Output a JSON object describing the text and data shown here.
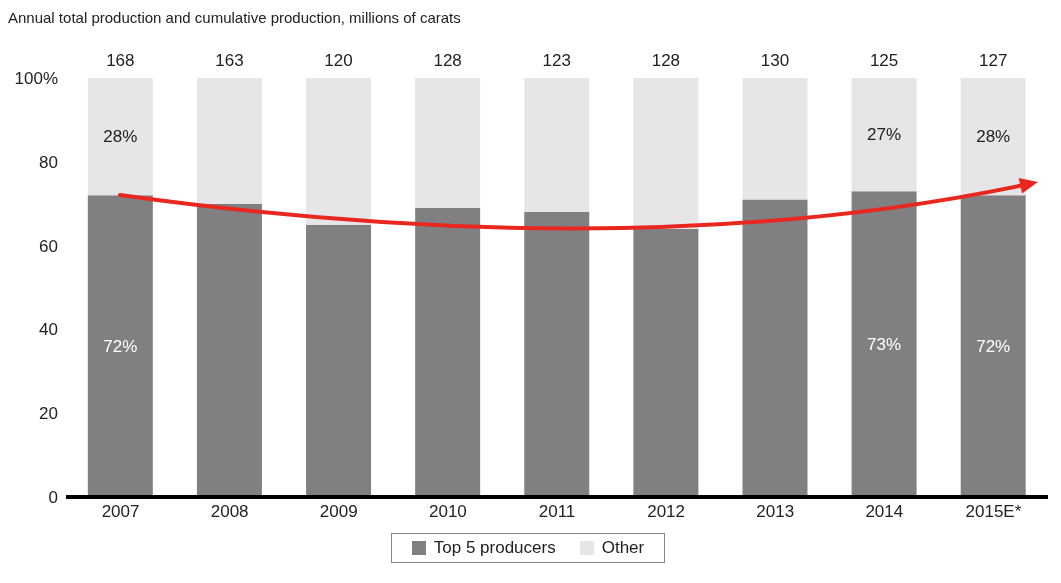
{
  "chart_data": {
    "type": "bar",
    "title": "Annual total production and cumulative production, millions of carats",
    "categories": [
      "2007",
      "2008",
      "2009",
      "2010",
      "2011",
      "2012",
      "2013",
      "2014",
      "2015E*"
    ],
    "stacked": true,
    "series": [
      {
        "name": "Top 5 producers",
        "color": "#808083",
        "values": [
          72,
          70,
          65,
          69,
          68,
          64,
          71,
          73,
          72
        ],
        "value_labels": [
          "72%",
          null,
          null,
          null,
          null,
          null,
          null,
          "73%",
          "72%"
        ]
      },
      {
        "name": "Other",
        "color": "#e6e6e8",
        "values": [
          28,
          30,
          35,
          31,
          32,
          36,
          29,
          27,
          28
        ],
        "value_labels": [
          "28%",
          null,
          null,
          null,
          null,
          null,
          null,
          "27%",
          "28%"
        ]
      }
    ],
    "annotations": [
      "168",
      "163",
      "120",
      "128",
      "123",
      "128",
      "130",
      "125",
      "127"
    ],
    "ylim": [
      0,
      100
    ],
    "yticks": [
      0,
      20,
      40,
      60,
      80,
      {
        "value": 100,
        "label": "100%"
      }
    ],
    "legend": "bottom"
  }
}
